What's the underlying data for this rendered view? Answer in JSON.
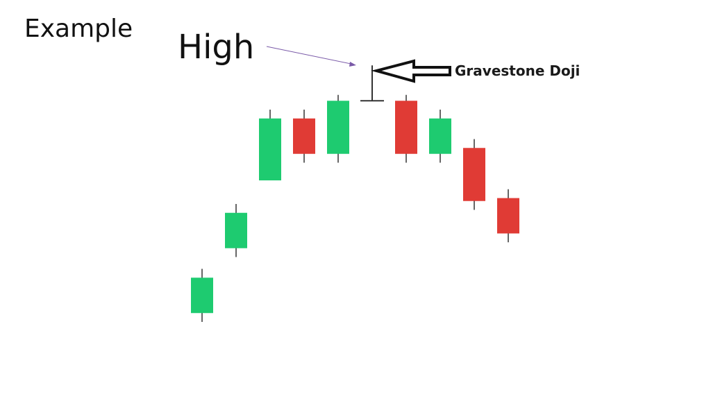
{
  "slide": {
    "title": "Example",
    "high_label": "High",
    "callout_label": "Gravestone Doji"
  },
  "colors": {
    "bullish": "#1ecb70",
    "bearish": "#e03b35",
    "wick": "#333333",
    "pointer_line": "#7a5aa8",
    "arrow_stroke": "#111111"
  },
  "chart_data": {
    "type": "candlestick",
    "ylim": [
      0,
      100
    ],
    "grid": false,
    "candles": [
      {
        "direction": "bullish",
        "open": 15,
        "close": 27,
        "high": 30,
        "low": 12
      },
      {
        "direction": "bullish",
        "open": 37,
        "close": 49,
        "high": 52,
        "low": 34
      },
      {
        "direction": "bullish",
        "open": 60,
        "close": 81,
        "high": 84,
        "low": 60
      },
      {
        "direction": "bearish",
        "open": 81,
        "close": 69,
        "high": 84,
        "low": 66
      },
      {
        "direction": "bullish",
        "open": 69,
        "close": 87,
        "high": 89,
        "low": 66
      },
      {
        "direction": "doji",
        "open": 87,
        "close": 87,
        "high": 99,
        "low": 87,
        "annotation": "Gravestone Doji"
      },
      {
        "direction": "bearish",
        "open": 87,
        "close": 69,
        "high": 89,
        "low": 66
      },
      {
        "direction": "bullish",
        "open": 69,
        "close": 81,
        "high": 84,
        "low": 66
      },
      {
        "direction": "bearish",
        "open": 71,
        "close": 53,
        "high": 74,
        "low": 50
      },
      {
        "direction": "bearish",
        "open": 54,
        "close": 42,
        "high": 57,
        "low": 39
      }
    ]
  }
}
